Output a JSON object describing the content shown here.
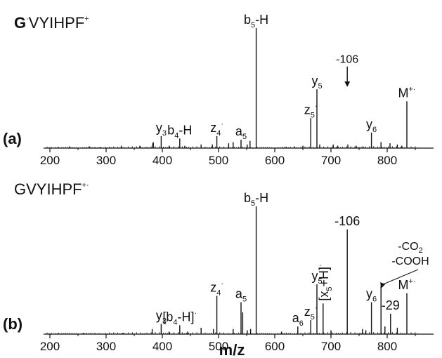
{
  "chart_data": [
    {
      "panel": "(a)",
      "type": "bar",
      "title_bold": "G",
      "title_rest": "VYIHPF",
      "title_sup": "+",
      "xlabel": "m/z",
      "xlim": [
        190,
        860
      ],
      "ticks": [
        200,
        300,
        400,
        500,
        600,
        700,
        800
      ],
      "grid": false,
      "peaks": [
        {
          "mz": 567,
          "rel": 1.0
        },
        {
          "mz": 835,
          "rel": 0.39
        },
        {
          "mz": 675,
          "rel": 0.49
        },
        {
          "mz": 664,
          "rel": 0.25
        },
        {
          "mz": 772,
          "rel": 0.13
        },
        {
          "mz": 540,
          "rel": 0.07
        },
        {
          "mz": 497,
          "rel": 0.1
        },
        {
          "mz": 431,
          "rel": 0.08
        },
        {
          "mz": 398,
          "rel": 0.1
        },
        {
          "mz": 384,
          "rel": 0.05
        },
        {
          "mz": 383,
          "rel": 0.04
        },
        {
          "mz": 518,
          "rel": 0.04
        },
        {
          "mz": 526,
          "rel": 0.05
        },
        {
          "mz": 556,
          "rel": 0.06
        },
        {
          "mz": 551,
          "rel": 0.03
        },
        {
          "mz": 680,
          "rel": 0.03
        },
        {
          "mz": 704,
          "rel": 0.03
        },
        {
          "mz": 712,
          "rel": 0.02
        },
        {
          "mz": 730,
          "rel": 0.03
        },
        {
          "mz": 745,
          "rel": 0.02
        },
        {
          "mz": 789,
          "rel": 0.05
        },
        {
          "mz": 805,
          "rel": 0.04
        },
        {
          "mz": 818,
          "rel": 0.03
        },
        {
          "mz": 826,
          "rel": 0.02
        },
        {
          "mz": 650,
          "rel": 0.02
        },
        {
          "mz": 469,
          "rel": 0.03
        },
        {
          "mz": 489,
          "rel": 0.03
        },
        {
          "mz": 412,
          "rel": 0.02
        },
        {
          "mz": 440,
          "rel": 0.02
        },
        {
          "mz": 360,
          "rel": 0.02
        },
        {
          "mz": 327,
          "rel": 0.02
        },
        {
          "mz": 270,
          "rel": 0.015
        },
        {
          "mz": 235,
          "rel": 0.015
        },
        {
          "mz": 215,
          "rel": 0.01
        },
        {
          "mz": 290,
          "rel": 0.01
        },
        {
          "mz": 620,
          "rel": 0.01
        },
        {
          "mz": 635,
          "rel": 0.015
        },
        {
          "mz": 757,
          "rel": 0.015
        }
      ],
      "annotations": [
        {
          "mz": 567,
          "label": "b",
          "sub": "5",
          "suffix": "-H",
          "rel": 1.0
        },
        {
          "mz": 835,
          "label": "M",
          "sup": "+·",
          "rel": 0.39
        },
        {
          "mz": 675,
          "label": "y",
          "sub": "5",
          "rel": 0.49
        },
        {
          "mz": 664,
          "label": "z",
          "sub": "5",
          "sup": "·",
          "rel": 0.25
        },
        {
          "mz": 772,
          "label": "y",
          "sub": "6",
          "rel": 0.13
        },
        {
          "mz": 540,
          "label": "a",
          "sub": "5",
          "rel": 0.07
        },
        {
          "mz": 497,
          "label": "z",
          "sub": "4",
          "sup": "·",
          "rel": 0.1
        },
        {
          "mz": 431,
          "label": "b",
          "sub": "4",
          "suffix": "-H",
          "rel": 0.08
        },
        {
          "mz": 398,
          "label": "y",
          "sub": "3",
          "rel": 0.1
        }
      ],
      "arrow_note": {
        "mz": 729,
        "label": "-106"
      }
    },
    {
      "panel": "(b)",
      "type": "bar",
      "title": "GVYIHPF",
      "title_sup": "+·",
      "xlabel": "m/z",
      "xlim": [
        190,
        860
      ],
      "ticks": [
        200,
        300,
        400,
        500,
        600,
        700,
        800
      ],
      "grid": false,
      "peaks": [
        {
          "mz": 567,
          "rel": 1.0
        },
        {
          "mz": 729,
          "rel": 0.82
        },
        {
          "mz": 789,
          "rel": 0.38
        },
        {
          "mz": 835,
          "rel": 0.32
        },
        {
          "mz": 675,
          "rel": 0.39
        },
        {
          "mz": 686,
          "rel": 0.24
        },
        {
          "mz": 772,
          "rel": 0.25
        },
        {
          "mz": 806,
          "rel": 0.16
        },
        {
          "mz": 664,
          "rel": 0.11
        },
        {
          "mz": 641,
          "rel": 0.06
        },
        {
          "mz": 540,
          "rel": 0.25
        },
        {
          "mz": 543,
          "rel": 0.17
        },
        {
          "mz": 497,
          "rel": 0.3
        },
        {
          "mz": 431,
          "rel": 0.07
        },
        {
          "mz": 398,
          "rel": 0.08
        },
        {
          "mz": 382,
          "rel": 0.04
        },
        {
          "mz": 469,
          "rel": 0.05
        },
        {
          "mz": 491,
          "rel": 0.04
        },
        {
          "mz": 526,
          "rel": 0.04
        },
        {
          "mz": 551,
          "rel": 0.03
        },
        {
          "mz": 557,
          "rel": 0.04
        },
        {
          "mz": 756,
          "rel": 0.04
        },
        {
          "mz": 762,
          "rel": 0.03
        },
        {
          "mz": 796,
          "rel": 0.06
        },
        {
          "mz": 818,
          "rel": 0.05
        },
        {
          "mz": 700,
          "rel": 0.03
        },
        {
          "mz": 612,
          "rel": 0.02
        },
        {
          "mz": 412,
          "rel": 0.02
        },
        {
          "mz": 445,
          "rel": 0.02
        },
        {
          "mz": 330,
          "rel": 0.01
        },
        {
          "mz": 260,
          "rel": 0.01
        },
        {
          "mz": 215,
          "rel": 0.01
        }
      ],
      "annotations": [
        {
          "mz": 567,
          "label": "b",
          "sub": "5",
          "suffix": "-H",
          "rel": 1.0
        },
        {
          "mz": 729,
          "label": "-106",
          "rel": 0.82
        },
        {
          "mz": 835,
          "label": "M",
          "sup": "+·",
          "rel": 0.32
        },
        {
          "mz": 806,
          "label": "-29",
          "rel": 0.16
        },
        {
          "mz": 772,
          "label": "y",
          "sub": "6",
          "rel": 0.25
        },
        {
          "mz": 675,
          "label": "y",
          "sub": "5",
          "rel": 0.39
        },
        {
          "mz": 664,
          "label": "z",
          "sub": "5",
          "sup": "·",
          "rel": 0.11
        },
        {
          "mz": 641,
          "label": "a",
          "sub": "6",
          "rel": 0.06
        },
        {
          "mz": 540,
          "label": "a",
          "sub": "5",
          "rel": 0.25
        },
        {
          "mz": 497,
          "label": "z",
          "sub": "4",
          "sup": "·",
          "rel": 0.3
        },
        {
          "mz": 431,
          "label": "[b",
          "sub": "4",
          "suffix": "-H]",
          "sup": "·",
          "rel": 0.07
        },
        {
          "mz": 398,
          "label": "y",
          "sub": "3",
          "rel": 0.08
        }
      ],
      "rotated_note": {
        "mz": 686,
        "label": "[x",
        "sub": "5",
        "suffix": "+H]",
        "sup": "·"
      },
      "callout": {
        "mz": 789,
        "line1": "-CO",
        "line1_sub": "2",
        "line2": "-COOH"
      }
    }
  ]
}
